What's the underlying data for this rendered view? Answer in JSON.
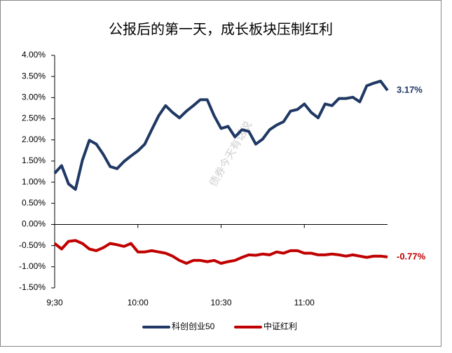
{
  "chart_data": {
    "type": "line",
    "title": "公报后的第一天，成长板块压制红利",
    "watermark": "债券今天有话说",
    "categories": [
      "9;30",
      null,
      null,
      null,
      null,
      null,
      null,
      null,
      null,
      null,
      null,
      null,
      "10:00",
      null,
      null,
      null,
      null,
      null,
      null,
      null,
      null,
      null,
      null,
      null,
      "10:30",
      null,
      null,
      null,
      null,
      null,
      null,
      null,
      null,
      null,
      null,
      null,
      "11:00",
      null,
      null,
      null,
      null,
      null,
      null,
      null,
      null,
      null,
      null,
      null,
      null
    ],
    "series": [
      {
        "name": "科创创业50",
        "color": "#1f3864",
        "values": [
          1.21,
          1.39,
          0.96,
          0.83,
          1.52,
          1.99,
          1.9,
          1.66,
          1.37,
          1.32,
          1.49,
          1.62,
          1.74,
          1.9,
          2.24,
          2.57,
          2.81,
          2.65,
          2.52,
          2.68,
          2.81,
          2.95,
          2.95,
          2.57,
          2.27,
          2.32,
          2.07,
          2.24,
          2.2,
          1.9,
          2.02,
          2.24,
          2.35,
          2.43,
          2.68,
          2.72,
          2.85,
          2.65,
          2.52,
          2.85,
          2.81,
          2.98,
          2.98,
          3.01,
          2.9,
          3.28,
          3.34,
          3.39,
          3.17
        ],
        "value_labels": [
          null,
          null,
          null,
          null,
          null,
          null,
          null,
          null,
          null,
          null,
          null,
          null,
          null,
          null,
          null,
          null,
          null,
          null,
          null,
          null,
          null,
          null,
          null,
          null,
          null,
          null,
          null,
          null,
          null,
          null,
          null,
          null,
          null,
          null,
          null,
          null,
          null,
          null,
          null,
          null,
          null,
          null,
          null,
          null,
          null,
          null,
          null,
          null,
          "3.17%"
        ]
      },
      {
        "name": "中证红利",
        "color": "#c00000",
        "values": [
          -0.45,
          -0.58,
          -0.4,
          -0.38,
          -0.45,
          -0.58,
          -0.62,
          -0.55,
          -0.45,
          -0.48,
          -0.52,
          -0.45,
          -0.65,
          -0.65,
          -0.62,
          -0.65,
          -0.68,
          -0.75,
          -0.85,
          -0.92,
          -0.85,
          -0.85,
          -0.88,
          -0.85,
          -0.92,
          -0.88,
          -0.85,
          -0.78,
          -0.72,
          -0.73,
          -0.7,
          -0.72,
          -0.65,
          -0.68,
          -0.62,
          -0.62,
          -0.68,
          -0.68,
          -0.72,
          -0.72,
          -0.7,
          -0.72,
          -0.75,
          -0.72,
          -0.75,
          -0.78,
          -0.75,
          -0.75,
          -0.77
        ],
        "value_labels": [
          null,
          null,
          null,
          null,
          null,
          null,
          null,
          null,
          null,
          null,
          null,
          null,
          null,
          null,
          null,
          null,
          null,
          null,
          null,
          null,
          null,
          null,
          null,
          null,
          null,
          null,
          null,
          null,
          null,
          null,
          null,
          null,
          null,
          null,
          null,
          null,
          null,
          null,
          null,
          null,
          null,
          null,
          null,
          null,
          null,
          null,
          null,
          null,
          "-0.77%"
        ]
      }
    ],
    "ylim": [
      -1.5,
      4
    ],
    "yticks": [
      {
        "value": 4,
        "label": "4.00%"
      },
      {
        "value": 3.5,
        "label": "3.50%"
      },
      {
        "value": 3,
        "label": "3.00%"
      },
      {
        "value": 2.5,
        "label": "2.50%"
      },
      {
        "value": 2,
        "label": "2.00%"
      },
      {
        "value": 1.5,
        "label": "1.50%"
      },
      {
        "value": 1,
        "label": "1.00%"
      },
      {
        "value": 0.5,
        "label": "0.50%"
      },
      {
        "value": 0,
        "label": "0.00%"
      },
      {
        "value": -0.5,
        "label": "-0.50%"
      },
      {
        "value": -1,
        "label": "-1.00%"
      },
      {
        "value": -1.5,
        "label": "-1.50%"
      }
    ],
    "grid": false,
    "legend": "bottom"
  }
}
